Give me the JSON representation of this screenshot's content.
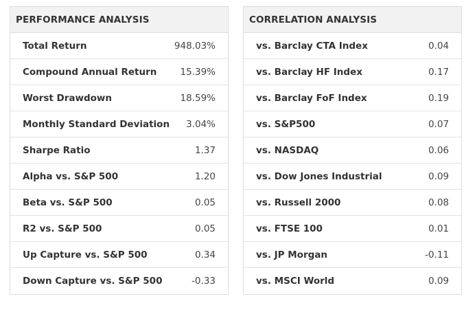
{
  "performance": {
    "title": "PERFORMANCE ANALYSIS",
    "rows": [
      {
        "label": "Total Return",
        "value": "948.03%"
      },
      {
        "label": "Compound Annual Return",
        "value": "15.39%"
      },
      {
        "label": "Worst Drawdown",
        "value": "18.59%"
      },
      {
        "label": "Monthly Standard Deviation",
        "value": "3.04%"
      },
      {
        "label": "Sharpe Ratio",
        "value": "1.37"
      },
      {
        "label": "Alpha vs. S&P 500",
        "value": "1.20"
      },
      {
        "label": "Beta vs. S&P 500",
        "value": "0.05"
      },
      {
        "label": "R2 vs. S&P 500",
        "value": "0.05"
      },
      {
        "label": "Up Capture vs. S&P 500",
        "value": "0.34"
      },
      {
        "label": "Down Capture vs. S&P 500",
        "value": "-0.33"
      }
    ]
  },
  "correlation": {
    "title": "CORRELATION ANALYSIS",
    "rows": [
      {
        "label": "vs. Barclay CTA Index",
        "value": "0.04"
      },
      {
        "label": "vs. Barclay HF Index",
        "value": "0.17"
      },
      {
        "label": "vs. Barclay FoF Index",
        "value": "0.19"
      },
      {
        "label": "vs. S&P500",
        "value": "0.07"
      },
      {
        "label": "vs. NASDAQ",
        "value": "0.06"
      },
      {
        "label": "vs. Dow Jones Industrial",
        "value": "0.09"
      },
      {
        "label": "vs. Russell 2000",
        "value": "0.08"
      },
      {
        "label": "vs. FTSE 100",
        "value": "0.01"
      },
      {
        "label": "vs. JP Morgan",
        "value": "-0.11"
      },
      {
        "label": "vs. MSCI World",
        "value": "0.09"
      }
    ]
  }
}
